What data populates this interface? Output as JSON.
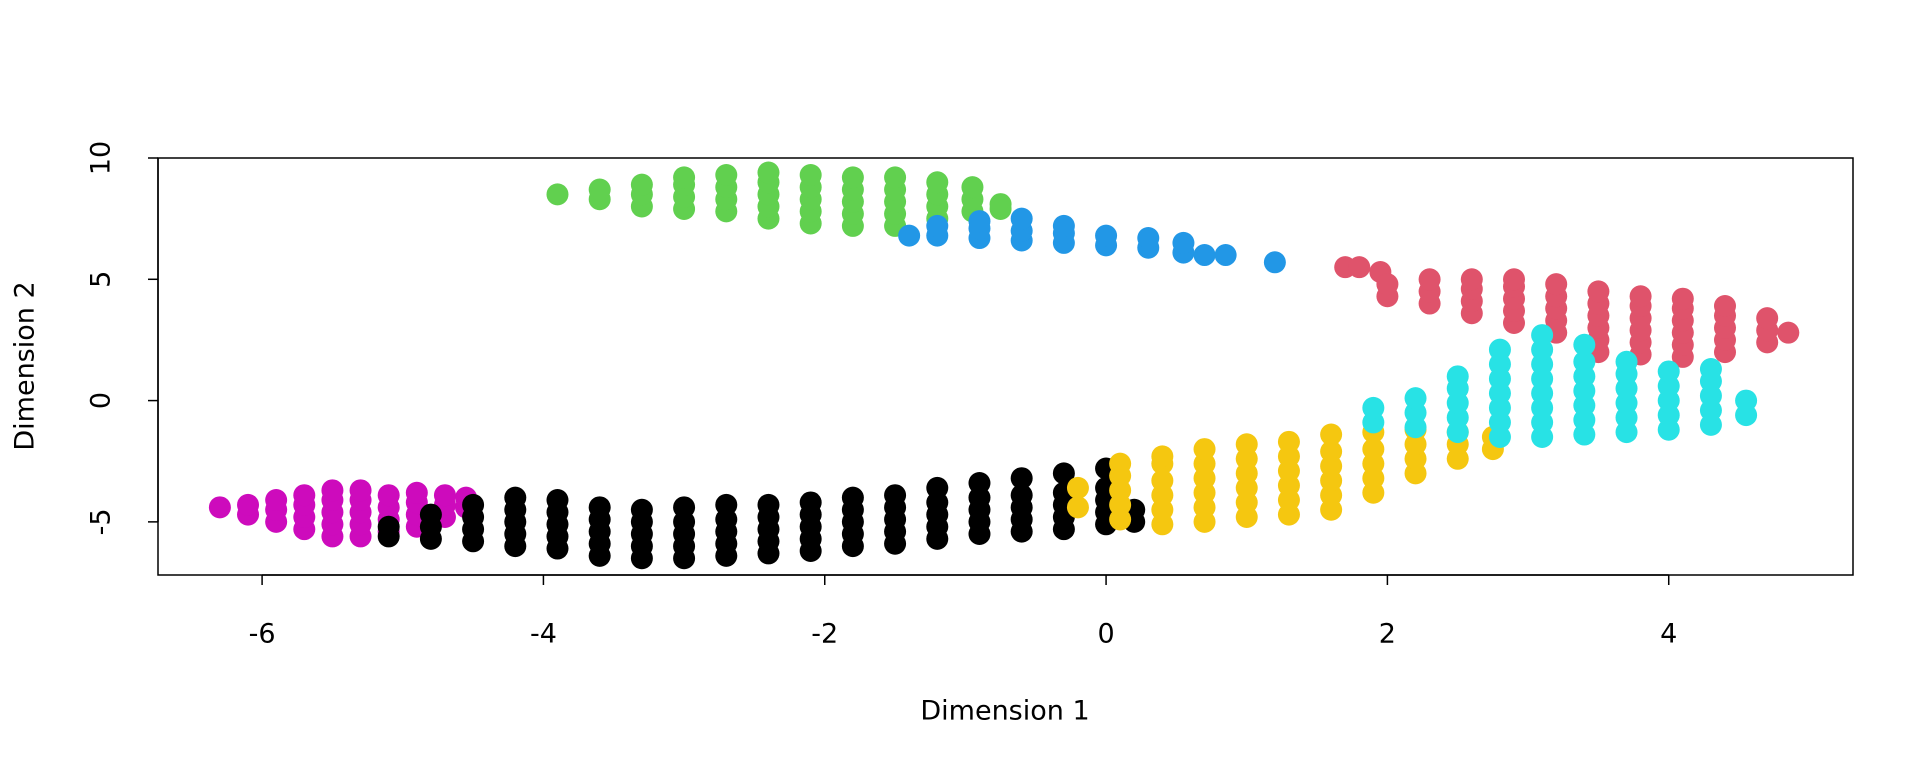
{
  "chart_data": {
    "type": "scatter",
    "xlabel": "Dimension 1",
    "ylabel": "Dimension 2",
    "xlim": [
      -6.74,
      5.31
    ],
    "ylim": [
      -7.19,
      10
    ],
    "xticks": [
      -6,
      -4,
      -2,
      0,
      2,
      4
    ],
    "yticks": [
      -5,
      0,
      5,
      10
    ],
    "series": [
      {
        "color": "#cd0bbc",
        "x": [
          -6.3,
          -6.1,
          -6.1,
          -5.9,
          -5.9,
          -5.9,
          -5.7,
          -5.7,
          -5.7,
          -5.7,
          -5.5,
          -5.5,
          -5.5,
          -5.5,
          -5.5,
          -5.3,
          -5.3,
          -5.3,
          -5.3,
          -5.3,
          -5.1,
          -5.1,
          -5.1,
          -5.1,
          -4.9,
          -4.9,
          -4.9,
          -4.9,
          -4.7,
          -4.7,
          -4.7,
          -4.55,
          -4.55
        ],
        "y": [
          -4.4,
          -4.7,
          -4.3,
          -5.0,
          -4.5,
          -4.1,
          -5.3,
          -4.8,
          -4.3,
          -3.9,
          -5.6,
          -5.1,
          -4.6,
          -4.1,
          -3.7,
          -5.6,
          -5.1,
          -4.6,
          -4.1,
          -3.7,
          -5.4,
          -4.9,
          -4.4,
          -3.9,
          -5.2,
          -4.7,
          -4.2,
          -3.8,
          -4.8,
          -4.3,
          -3.9,
          -4.4,
          -4.0
        ]
      },
      {
        "color": "#000000",
        "x": [
          -5.1,
          -5.1,
          -4.8,
          -4.8,
          -4.8,
          -4.5,
          -4.5,
          -4.5,
          -4.5,
          -4.2,
          -4.2,
          -4.2,
          -4.2,
          -4.2,
          -3.9,
          -3.9,
          -3.9,
          -3.9,
          -3.9,
          -3.6,
          -3.6,
          -3.6,
          -3.6,
          -3.6,
          -3.3,
          -3.3,
          -3.3,
          -3.3,
          -3.3,
          -3.0,
          -3.0,
          -3.0,
          -3.0,
          -3.0,
          -2.7,
          -2.7,
          -2.7,
          -2.7,
          -2.7,
          -2.4,
          -2.4,
          -2.4,
          -2.4,
          -2.4,
          -2.1,
          -2.1,
          -2.1,
          -2.1,
          -2.1,
          -1.8,
          -1.8,
          -1.8,
          -1.8,
          -1.8,
          -1.5,
          -1.5,
          -1.5,
          -1.5,
          -1.5,
          -1.2,
          -1.2,
          -1.2,
          -1.2,
          -1.2,
          -0.9,
          -0.9,
          -0.9,
          -0.9,
          -0.9,
          -0.6,
          -0.6,
          -0.6,
          -0.6,
          -0.6,
          -0.3,
          -0.3,
          -0.3,
          -0.3,
          -0.3,
          0.0,
          0.0,
          0.0,
          0.0,
          0.0,
          0.2,
          0.2
        ],
        "y": [
          -5.6,
          -5.2,
          -5.7,
          -5.2,
          -4.7,
          -5.8,
          -5.3,
          -4.8,
          -4.3,
          -6.0,
          -5.5,
          -5.0,
          -4.5,
          -4.0,
          -6.1,
          -5.6,
          -5.1,
          -4.6,
          -4.1,
          -6.4,
          -5.9,
          -5.4,
          -4.9,
          -4.4,
          -6.5,
          -6.0,
          -5.5,
          -5.0,
          -4.5,
          -6.5,
          -6.0,
          -5.5,
          -5.0,
          -4.4,
          -6.4,
          -5.9,
          -5.4,
          -4.9,
          -4.3,
          -6.3,
          -5.8,
          -5.3,
          -4.8,
          -4.3,
          -6.2,
          -5.7,
          -5.2,
          -4.7,
          -4.2,
          -6.0,
          -5.5,
          -5.0,
          -4.5,
          -4.0,
          -5.9,
          -5.4,
          -4.9,
          -4.4,
          -3.9,
          -5.7,
          -5.2,
          -4.7,
          -4.2,
          -3.6,
          -5.5,
          -5.0,
          -4.5,
          -4.0,
          -3.4,
          -5.4,
          -4.9,
          -4.4,
          -3.9,
          -3.2,
          -5.3,
          -4.8,
          -4.3,
          -3.8,
          -3.0,
          -5.1,
          -4.6,
          -4.1,
          -3.6,
          -2.8,
          -5.0,
          -4.5
        ]
      },
      {
        "color": "#f5c710",
        "x": [
          -0.2,
          -0.2,
          0.1,
          0.1,
          0.1,
          0.1,
          0.1,
          0.4,
          0.4,
          0.4,
          0.4,
          0.4,
          0.4,
          0.7,
          0.7,
          0.7,
          0.7,
          0.7,
          0.7,
          1.0,
          1.0,
          1.0,
          1.0,
          1.0,
          1.0,
          1.3,
          1.3,
          1.3,
          1.3,
          1.3,
          1.3,
          1.6,
          1.6,
          1.6,
          1.6,
          1.6,
          1.6,
          1.9,
          1.9,
          1.9,
          1.9,
          1.9,
          2.2,
          2.2,
          2.2,
          2.2,
          2.5,
          2.5,
          2.5,
          2.75,
          2.75
        ],
        "y": [
          -4.4,
          -3.6,
          -4.9,
          -4.3,
          -3.7,
          -3.1,
          -2.6,
          -5.1,
          -4.5,
          -3.9,
          -3.3,
          -2.6,
          -2.3,
          -5.0,
          -4.4,
          -3.8,
          -3.2,
          -2.6,
          -2.0,
          -4.8,
          -4.2,
          -3.6,
          -3.0,
          -2.4,
          -1.8,
          -4.7,
          -4.1,
          -3.5,
          -2.9,
          -2.3,
          -1.7,
          -4.5,
          -3.9,
          -3.3,
          -2.7,
          -2.1,
          -1.4,
          -3.8,
          -3.2,
          -2.6,
          -2.0,
          -1.3,
          -3.0,
          -2.4,
          -1.8,
          -1.2,
          -2.4,
          -1.8,
          -1.3,
          -2.0,
          -1.5
        ]
      },
      {
        "color": "#df536b",
        "x": [
          1.7,
          1.8,
          1.95,
          2.0,
          2.0,
          2.3,
          2.3,
          2.3,
          2.6,
          2.6,
          2.6,
          2.6,
          2.9,
          2.9,
          2.9,
          2.9,
          2.9,
          3.2,
          3.2,
          3.2,
          3.2,
          3.2,
          3.5,
          3.5,
          3.5,
          3.5,
          3.5,
          3.5,
          3.8,
          3.8,
          3.8,
          3.8,
          3.8,
          3.8,
          4.1,
          4.1,
          4.1,
          4.1,
          4.1,
          4.1,
          4.4,
          4.4,
          4.4,
          4.4,
          4.4,
          4.7,
          4.7,
          4.7,
          4.85
        ],
        "y": [
          5.5,
          5.5,
          5.3,
          4.3,
          4.8,
          4.0,
          4.5,
          5.0,
          3.6,
          4.1,
          4.6,
          5.0,
          3.2,
          3.7,
          4.2,
          4.7,
          5.0,
          2.8,
          3.3,
          3.8,
          4.3,
          4.8,
          2.0,
          2.5,
          3.0,
          3.5,
          4.0,
          4.5,
          1.9,
          2.4,
          2.9,
          3.4,
          3.9,
          4.3,
          1.8,
          2.3,
          2.8,
          3.3,
          3.8,
          4.2,
          2.0,
          2.5,
          3.0,
          3.5,
          3.9,
          2.4,
          2.9,
          3.4,
          2.8
        ]
      },
      {
        "color": "#28e2e5",
        "x": [
          1.9,
          1.9,
          2.2,
          2.2,
          2.2,
          2.5,
          2.5,
          2.5,
          2.5,
          2.5,
          2.8,
          2.8,
          2.8,
          2.8,
          2.8,
          2.8,
          2.8,
          3.1,
          3.1,
          3.1,
          3.1,
          3.1,
          3.1,
          3.1,
          3.1,
          3.4,
          3.4,
          3.4,
          3.4,
          3.4,
          3.4,
          3.4,
          3.7,
          3.7,
          3.7,
          3.7,
          3.7,
          3.7,
          4.0,
          4.0,
          4.0,
          4.0,
          4.0,
          4.3,
          4.3,
          4.3,
          4.3,
          4.3,
          4.55,
          4.55
        ],
        "y": [
          -0.9,
          -0.3,
          -1.1,
          -0.5,
          0.1,
          -1.3,
          -0.7,
          -0.1,
          0.5,
          1.0,
          -1.5,
          -0.9,
          -0.3,
          0.3,
          0.9,
          1.5,
          2.1,
          -1.5,
          -0.9,
          -0.3,
          0.3,
          0.9,
          1.5,
          2.1,
          2.7,
          -1.4,
          -0.8,
          -0.2,
          0.4,
          1.0,
          1.6,
          2.3,
          -1.3,
          -0.7,
          -0.1,
          0.5,
          1.1,
          1.6,
          -1.2,
          -0.6,
          0.0,
          0.6,
          1.2,
          -1.0,
          -0.4,
          0.2,
          0.8,
          1.3,
          -0.6,
          0.0
        ]
      },
      {
        "color": "#61d04f",
        "x": [
          -3.9,
          -3.6,
          -3.6,
          -3.3,
          -3.3,
          -3.3,
          -3.0,
          -3.0,
          -3.0,
          -3.0,
          -2.7,
          -2.7,
          -2.7,
          -2.7,
          -2.4,
          -2.4,
          -2.4,
          -2.4,
          -2.4,
          -2.1,
          -2.1,
          -2.1,
          -2.1,
          -2.1,
          -1.8,
          -1.8,
          -1.8,
          -1.8,
          -1.8,
          -1.5,
          -1.5,
          -1.5,
          -1.5,
          -1.5,
          -1.2,
          -1.2,
          -1.2,
          -1.2,
          -0.95,
          -0.95,
          -0.95,
          -0.75,
          -0.75
        ],
        "y": [
          8.5,
          8.3,
          8.7,
          8.0,
          8.5,
          8.9,
          7.9,
          8.4,
          8.9,
          9.2,
          7.8,
          8.3,
          8.8,
          9.3,
          7.5,
          8.0,
          8.5,
          9.0,
          9.4,
          7.3,
          7.8,
          8.3,
          8.8,
          9.3,
          7.2,
          7.7,
          8.2,
          8.7,
          9.2,
          7.2,
          7.7,
          8.2,
          8.7,
          9.2,
          7.5,
          8.0,
          8.5,
          9.0,
          7.8,
          8.3,
          8.8,
          7.9,
          8.1
        ]
      },
      {
        "color": "#2297e6",
        "x": [
          -1.4,
          -1.2,
          -1.2,
          -0.9,
          -0.9,
          -0.9,
          -0.6,
          -0.6,
          -0.6,
          -0.3,
          -0.3,
          -0.3,
          0.0,
          0.0,
          0.3,
          0.3,
          0.55,
          0.55,
          0.7,
          0.85,
          1.2
        ],
        "y": [
          6.8,
          6.8,
          7.2,
          6.7,
          7.1,
          7.4,
          6.6,
          7.0,
          7.5,
          6.5,
          6.9,
          7.2,
          6.4,
          6.8,
          6.3,
          6.7,
          6.1,
          6.5,
          6.0,
          6.0,
          5.7
        ]
      }
    ]
  }
}
